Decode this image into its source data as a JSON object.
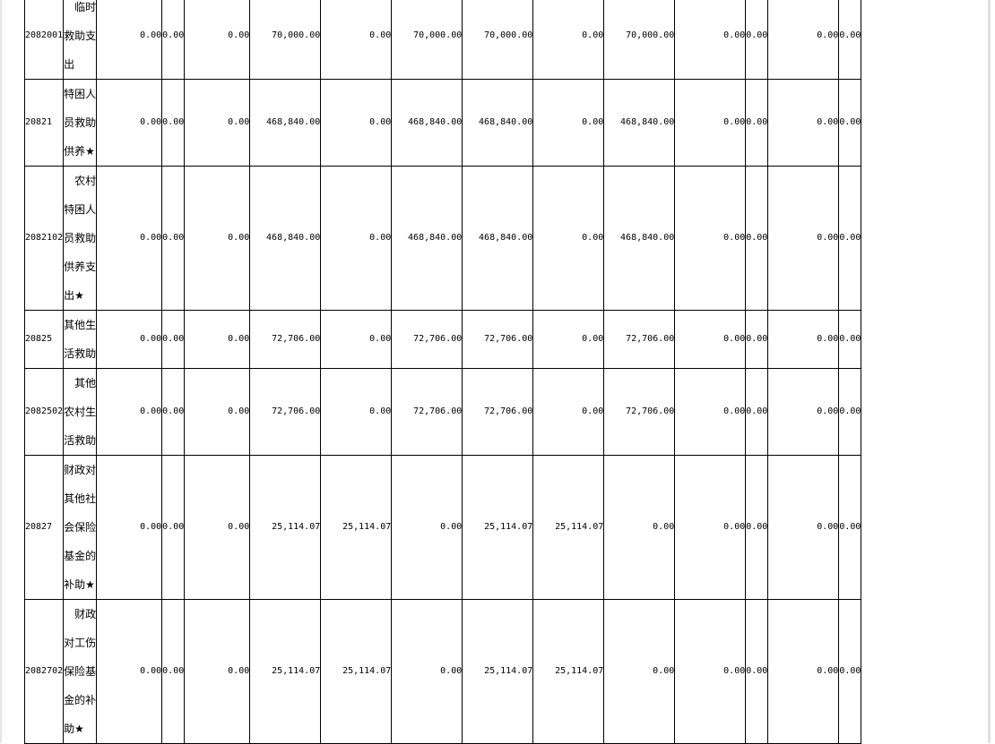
{
  "rows": [
    {
      "code": "2082001",
      "name": "临时救助支出",
      "indent": true,
      "values": [
        "0.00",
        "0.00",
        "0.00",
        "70,000.00",
        "0.00",
        "70,000.00",
        "70,000.00",
        "0.00",
        "70,000.00",
        "0.00",
        "0.00",
        "0.00",
        "0.00"
      ]
    },
    {
      "code": "20821",
      "name": "特困人员救助供养★",
      "indent": false,
      "values": [
        "0.00",
        "0.00",
        "0.00",
        "468,840.00",
        "0.00",
        "468,840.00",
        "468,840.00",
        "0.00",
        "468,840.00",
        "0.00",
        "0.00",
        "0.00",
        "0.00"
      ]
    },
    {
      "code": "2082102",
      "name": "农村特困人员救助供养支出★",
      "indent": true,
      "values": [
        "0.00",
        "0.00",
        "0.00",
        "468,840.00",
        "0.00",
        "468,840.00",
        "468,840.00",
        "0.00",
        "468,840.00",
        "0.00",
        "0.00",
        "0.00",
        "0.00"
      ]
    },
    {
      "code": "20825",
      "name": "其他生活救助",
      "indent": false,
      "values": [
        "0.00",
        "0.00",
        "0.00",
        "72,706.00",
        "0.00",
        "72,706.00",
        "72,706.00",
        "0.00",
        "72,706.00",
        "0.00",
        "0.00",
        "0.00",
        "0.00"
      ]
    },
    {
      "code": "2082502",
      "name": "其他农村生活救助",
      "indent": true,
      "values": [
        "0.00",
        "0.00",
        "0.00",
        "72,706.00",
        "0.00",
        "72,706.00",
        "72,706.00",
        "0.00",
        "72,706.00",
        "0.00",
        "0.00",
        "0.00",
        "0.00"
      ]
    },
    {
      "code": "20827",
      "name": "财政对其他社会保险基金的补助★",
      "indent": false,
      "values": [
        "0.00",
        "0.00",
        "0.00",
        "25,114.07",
        "25,114.07",
        "0.00",
        "25,114.07",
        "25,114.07",
        "0.00",
        "0.00",
        "0.00",
        "0.00",
        "0.00"
      ]
    },
    {
      "code": "2082702",
      "name": "财政对工伤保险基金的补助★",
      "indent": true,
      "values": [
        "0.00",
        "0.00",
        "0.00",
        "25,114.07",
        "25,114.07",
        "0.00",
        "25,114.07",
        "25,114.07",
        "0.00",
        "0.00",
        "0.00",
        "0.00",
        "0.00"
      ]
    }
  ]
}
